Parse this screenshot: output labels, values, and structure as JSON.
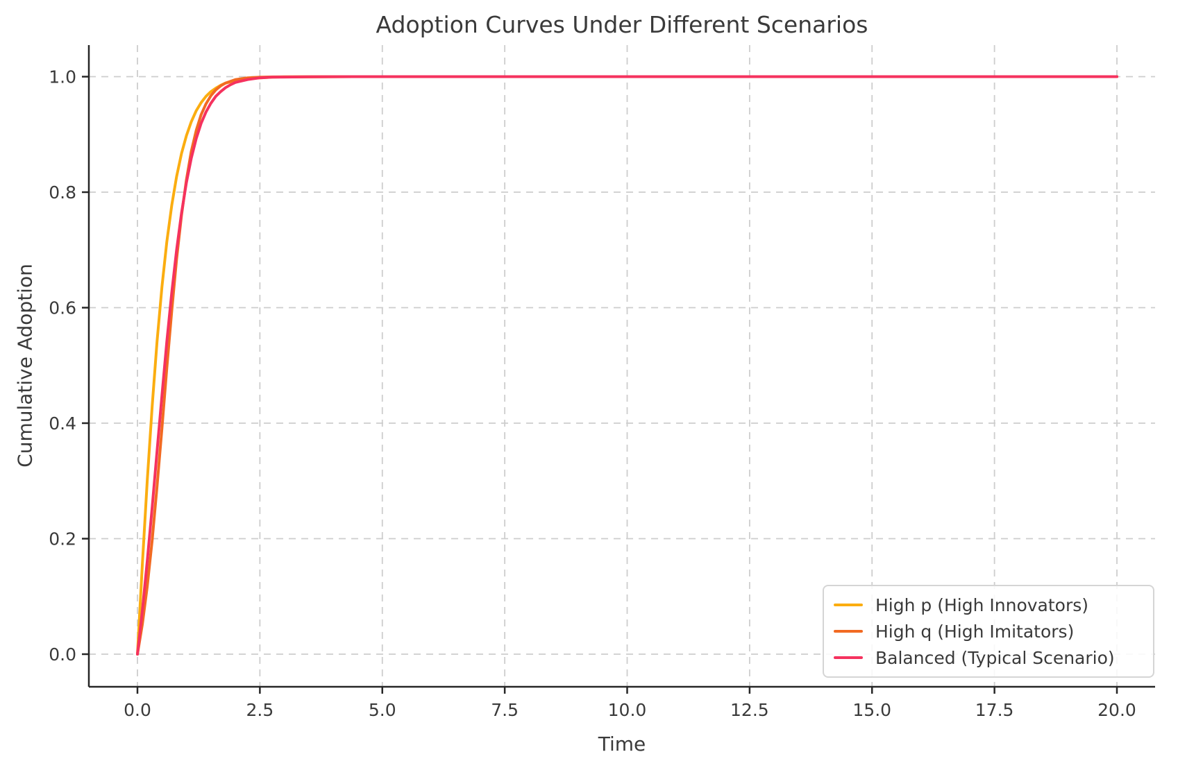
{
  "chart_data": {
    "type": "line",
    "title": "Adoption Curves Under Different Scenarios",
    "xlabel": "Time",
    "ylabel": "Cumulative Adoption",
    "xlim": [
      0,
      20
    ],
    "ylim": [
      0.0,
      1.0
    ],
    "x_ticks": [
      0.0,
      2.5,
      5.0,
      7.5,
      10.0,
      12.5,
      15.0,
      17.5,
      20.0
    ],
    "x_tick_labels": [
      "0.0",
      "2.5",
      "5.0",
      "7.5",
      "10.0",
      "12.5",
      "15.0",
      "17.5",
      "20.0"
    ],
    "y_ticks": [
      0.0,
      0.2,
      0.4,
      0.6,
      0.8,
      1.0
    ],
    "y_tick_labels": [
      "0.0",
      "0.2",
      "0.4",
      "0.6",
      "0.8",
      "1.0"
    ],
    "grid": true,
    "grid_style": "dashed",
    "legend_position": "lower right",
    "colors": {
      "high_p": "#FBAD10",
      "high_q": "#F26A22",
      "balanced": "#F5325E",
      "grid": "#cdcdcd",
      "spine": "#262626",
      "text": "#3a3a3a",
      "legend_border": "#d5d5d5"
    },
    "x": [
      0,
      0.1,
      0.2,
      0.3,
      0.4,
      0.5,
      0.6,
      0.7,
      0.8,
      0.9,
      1.0,
      1.1,
      1.2,
      1.3,
      1.4,
      1.5,
      1.6,
      1.7,
      1.8,
      1.9,
      2.0,
      2.25,
      2.5,
      2.75,
      3.0,
      3.5,
      4.0,
      5.0,
      6.0,
      7.5,
      10.0,
      12.5,
      15.0,
      17.5,
      20.0
    ],
    "series": [
      {
        "name": "High p (High Innovators)",
        "color": "#FBAD10",
        "values": [
          0,
          0.156,
          0.3,
          0.429,
          0.541,
          0.636,
          0.714,
          0.777,
          0.827,
          0.867,
          0.898,
          0.922,
          0.941,
          0.955,
          0.966,
          0.974,
          0.98,
          0.985,
          0.989,
          0.991,
          0.994,
          0.997,
          0.998,
          0.999,
          0.9995,
          0.9998,
          0.9999,
          1.0,
          1.0,
          1.0,
          1.0,
          1.0,
          1.0,
          1.0,
          1.0
        ]
      },
      {
        "name": "High q (High Imitators)",
        "color": "#F26A22",
        "values": [
          0,
          0.052,
          0.117,
          0.197,
          0.29,
          0.391,
          0.495,
          0.594,
          0.684,
          0.76,
          0.822,
          0.871,
          0.907,
          0.934,
          0.953,
          0.967,
          0.977,
          0.984,
          0.989,
          0.992,
          0.995,
          0.998,
          0.999,
          0.9995,
          0.9997,
          0.9999,
          1.0,
          1.0,
          1.0,
          1.0,
          1.0,
          1.0,
          1.0,
          1.0,
          1.0
        ]
      },
      {
        "name": "Balanced (Typical Scenario)",
        "color": "#F5325E",
        "values": [
          0,
          0.076,
          0.161,
          0.254,
          0.351,
          0.448,
          0.541,
          0.626,
          0.7,
          0.764,
          0.817,
          0.859,
          0.893,
          0.919,
          0.939,
          0.954,
          0.966,
          0.974,
          0.981,
          0.986,
          0.99,
          0.995,
          0.998,
          0.999,
          0.9993,
          0.9997,
          0.9999,
          1.0,
          1.0,
          1.0,
          1.0,
          1.0,
          1.0,
          1.0,
          1.0
        ]
      }
    ]
  }
}
